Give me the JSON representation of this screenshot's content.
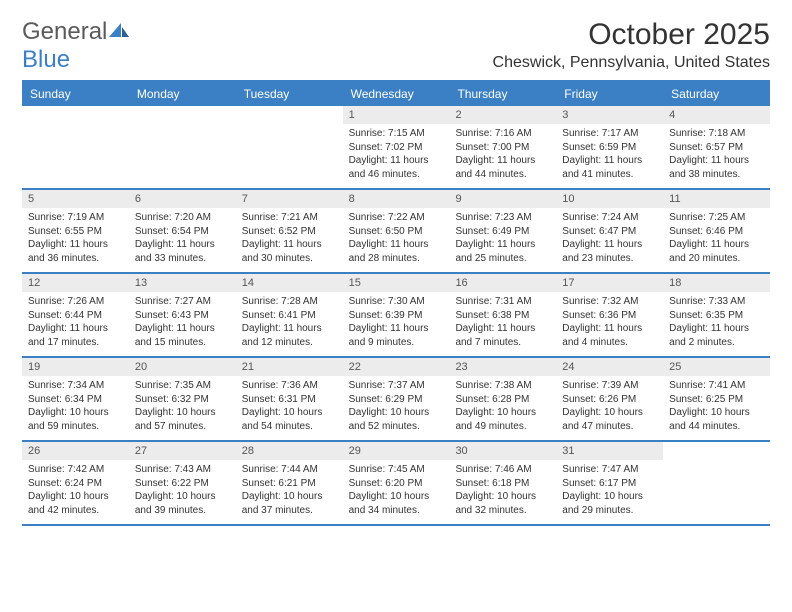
{
  "logo": {
    "word1": "General",
    "word2": "Blue"
  },
  "title": "October 2025",
  "location": "Cheswick, Pennsylvania, United States",
  "colors": {
    "accent": "#3b7fc4",
    "header_text": "#ffffff",
    "daynum_bg": "#ececec",
    "text": "#333333",
    "logo_gray": "#5a5a5a"
  },
  "dow": [
    "Sunday",
    "Monday",
    "Tuesday",
    "Wednesday",
    "Thursday",
    "Friday",
    "Saturday"
  ],
  "weeks": [
    [
      {
        "n": "",
        "sr": "",
        "ss": "",
        "dl1": "",
        "dl2": ""
      },
      {
        "n": "",
        "sr": "",
        "ss": "",
        "dl1": "",
        "dl2": ""
      },
      {
        "n": "",
        "sr": "",
        "ss": "",
        "dl1": "",
        "dl2": ""
      },
      {
        "n": "1",
        "sr": "Sunrise: 7:15 AM",
        "ss": "Sunset: 7:02 PM",
        "dl1": "Daylight: 11 hours",
        "dl2": "and 46 minutes."
      },
      {
        "n": "2",
        "sr": "Sunrise: 7:16 AM",
        "ss": "Sunset: 7:00 PM",
        "dl1": "Daylight: 11 hours",
        "dl2": "and 44 minutes."
      },
      {
        "n": "3",
        "sr": "Sunrise: 7:17 AM",
        "ss": "Sunset: 6:59 PM",
        "dl1": "Daylight: 11 hours",
        "dl2": "and 41 minutes."
      },
      {
        "n": "4",
        "sr": "Sunrise: 7:18 AM",
        "ss": "Sunset: 6:57 PM",
        "dl1": "Daylight: 11 hours",
        "dl2": "and 38 minutes."
      }
    ],
    [
      {
        "n": "5",
        "sr": "Sunrise: 7:19 AM",
        "ss": "Sunset: 6:55 PM",
        "dl1": "Daylight: 11 hours",
        "dl2": "and 36 minutes."
      },
      {
        "n": "6",
        "sr": "Sunrise: 7:20 AM",
        "ss": "Sunset: 6:54 PM",
        "dl1": "Daylight: 11 hours",
        "dl2": "and 33 minutes."
      },
      {
        "n": "7",
        "sr": "Sunrise: 7:21 AM",
        "ss": "Sunset: 6:52 PM",
        "dl1": "Daylight: 11 hours",
        "dl2": "and 30 minutes."
      },
      {
        "n": "8",
        "sr": "Sunrise: 7:22 AM",
        "ss": "Sunset: 6:50 PM",
        "dl1": "Daylight: 11 hours",
        "dl2": "and 28 minutes."
      },
      {
        "n": "9",
        "sr": "Sunrise: 7:23 AM",
        "ss": "Sunset: 6:49 PM",
        "dl1": "Daylight: 11 hours",
        "dl2": "and 25 minutes."
      },
      {
        "n": "10",
        "sr": "Sunrise: 7:24 AM",
        "ss": "Sunset: 6:47 PM",
        "dl1": "Daylight: 11 hours",
        "dl2": "and 23 minutes."
      },
      {
        "n": "11",
        "sr": "Sunrise: 7:25 AM",
        "ss": "Sunset: 6:46 PM",
        "dl1": "Daylight: 11 hours",
        "dl2": "and 20 minutes."
      }
    ],
    [
      {
        "n": "12",
        "sr": "Sunrise: 7:26 AM",
        "ss": "Sunset: 6:44 PM",
        "dl1": "Daylight: 11 hours",
        "dl2": "and 17 minutes."
      },
      {
        "n": "13",
        "sr": "Sunrise: 7:27 AM",
        "ss": "Sunset: 6:43 PM",
        "dl1": "Daylight: 11 hours",
        "dl2": "and 15 minutes."
      },
      {
        "n": "14",
        "sr": "Sunrise: 7:28 AM",
        "ss": "Sunset: 6:41 PM",
        "dl1": "Daylight: 11 hours",
        "dl2": "and 12 minutes."
      },
      {
        "n": "15",
        "sr": "Sunrise: 7:30 AM",
        "ss": "Sunset: 6:39 PM",
        "dl1": "Daylight: 11 hours",
        "dl2": "and 9 minutes."
      },
      {
        "n": "16",
        "sr": "Sunrise: 7:31 AM",
        "ss": "Sunset: 6:38 PM",
        "dl1": "Daylight: 11 hours",
        "dl2": "and 7 minutes."
      },
      {
        "n": "17",
        "sr": "Sunrise: 7:32 AM",
        "ss": "Sunset: 6:36 PM",
        "dl1": "Daylight: 11 hours",
        "dl2": "and 4 minutes."
      },
      {
        "n": "18",
        "sr": "Sunrise: 7:33 AM",
        "ss": "Sunset: 6:35 PM",
        "dl1": "Daylight: 11 hours",
        "dl2": "and 2 minutes."
      }
    ],
    [
      {
        "n": "19",
        "sr": "Sunrise: 7:34 AM",
        "ss": "Sunset: 6:34 PM",
        "dl1": "Daylight: 10 hours",
        "dl2": "and 59 minutes."
      },
      {
        "n": "20",
        "sr": "Sunrise: 7:35 AM",
        "ss": "Sunset: 6:32 PM",
        "dl1": "Daylight: 10 hours",
        "dl2": "and 57 minutes."
      },
      {
        "n": "21",
        "sr": "Sunrise: 7:36 AM",
        "ss": "Sunset: 6:31 PM",
        "dl1": "Daylight: 10 hours",
        "dl2": "and 54 minutes."
      },
      {
        "n": "22",
        "sr": "Sunrise: 7:37 AM",
        "ss": "Sunset: 6:29 PM",
        "dl1": "Daylight: 10 hours",
        "dl2": "and 52 minutes."
      },
      {
        "n": "23",
        "sr": "Sunrise: 7:38 AM",
        "ss": "Sunset: 6:28 PM",
        "dl1": "Daylight: 10 hours",
        "dl2": "and 49 minutes."
      },
      {
        "n": "24",
        "sr": "Sunrise: 7:39 AM",
        "ss": "Sunset: 6:26 PM",
        "dl1": "Daylight: 10 hours",
        "dl2": "and 47 minutes."
      },
      {
        "n": "25",
        "sr": "Sunrise: 7:41 AM",
        "ss": "Sunset: 6:25 PM",
        "dl1": "Daylight: 10 hours",
        "dl2": "and 44 minutes."
      }
    ],
    [
      {
        "n": "26",
        "sr": "Sunrise: 7:42 AM",
        "ss": "Sunset: 6:24 PM",
        "dl1": "Daylight: 10 hours",
        "dl2": "and 42 minutes."
      },
      {
        "n": "27",
        "sr": "Sunrise: 7:43 AM",
        "ss": "Sunset: 6:22 PM",
        "dl1": "Daylight: 10 hours",
        "dl2": "and 39 minutes."
      },
      {
        "n": "28",
        "sr": "Sunrise: 7:44 AM",
        "ss": "Sunset: 6:21 PM",
        "dl1": "Daylight: 10 hours",
        "dl2": "and 37 minutes."
      },
      {
        "n": "29",
        "sr": "Sunrise: 7:45 AM",
        "ss": "Sunset: 6:20 PM",
        "dl1": "Daylight: 10 hours",
        "dl2": "and 34 minutes."
      },
      {
        "n": "30",
        "sr": "Sunrise: 7:46 AM",
        "ss": "Sunset: 6:18 PM",
        "dl1": "Daylight: 10 hours",
        "dl2": "and 32 minutes."
      },
      {
        "n": "31",
        "sr": "Sunrise: 7:47 AM",
        "ss": "Sunset: 6:17 PM",
        "dl1": "Daylight: 10 hours",
        "dl2": "and 29 minutes."
      },
      {
        "n": "",
        "sr": "",
        "ss": "",
        "dl1": "",
        "dl2": ""
      }
    ]
  ]
}
